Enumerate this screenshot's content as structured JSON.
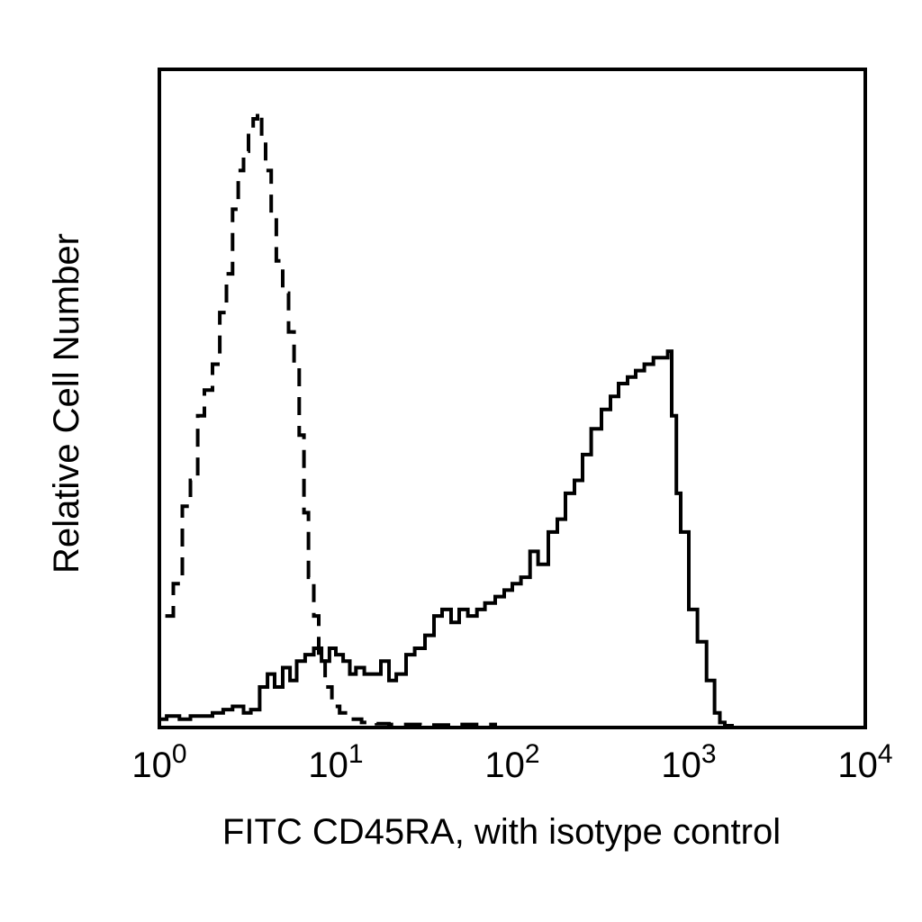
{
  "chart_data": {
    "type": "line",
    "title": "",
    "xlabel": "FITC CD45RA, with isotype control",
    "ylabel": "Relative Cell Number",
    "x_scale": "log10",
    "xlim": [
      1,
      10000
    ],
    "ylim": [
      0,
      100
    ],
    "grid": false,
    "legend": "none",
    "x_ticks": [
      {
        "value": 1,
        "base": "10",
        "exp": "0"
      },
      {
        "value": 10,
        "base": "10",
        "exp": "1"
      },
      {
        "value": 100,
        "base": "10",
        "exp": "2"
      },
      {
        "value": 1000,
        "base": "10",
        "exp": "3"
      },
      {
        "value": 10000,
        "base": "10",
        "exp": "4"
      }
    ],
    "series": [
      {
        "style": "dashed",
        "color": "#000000",
        "x": [
          1.08,
          1.2,
          1.35,
          1.5,
          1.65,
          1.8,
          2.0,
          2.2,
          2.4,
          2.6,
          2.8,
          3.0,
          3.2,
          3.4,
          3.6,
          3.8,
          4.0,
          4.3,
          4.6,
          5.0,
          5.4,
          5.8,
          6.2,
          6.6,
          7.0,
          7.5,
          8.0,
          8.7,
          9.5,
          10.5,
          12,
          14,
          17,
          20,
          30,
          50,
          80
        ],
        "y": [
          17,
          22,
          34,
          38,
          48,
          52,
          56,
          64,
          70,
          80,
          86,
          89,
          92,
          94,
          95,
          91,
          86,
          79,
          72,
          67,
          61,
          56,
          45,
          33,
          23,
          17,
          10,
          6,
          3,
          2,
          1,
          0.5,
          0.3,
          0.2,
          0.1,
          0.2,
          0
        ]
      },
      {
        "style": "solid",
        "color": "#000000",
        "x": [
          1.0,
          1.1,
          1.3,
          1.5,
          1.7,
          2.0,
          2.3,
          2.6,
          3.0,
          3.3,
          3.7,
          4.1,
          4.5,
          5.0,
          5.5,
          6.0,
          6.7,
          7.5,
          8.3,
          9.2,
          10,
          11,
          12,
          13,
          14.5,
          16,
          18,
          20,
          22,
          25,
          28,
          32,
          36,
          40,
          45,
          50,
          56,
          63,
          70,
          80,
          90,
          100,
          112,
          126,
          140,
          160,
          180,
          200,
          225,
          250,
          280,
          320,
          360,
          400,
          450,
          500,
          560,
          630,
          700,
          760,
          800,
          850,
          900,
          1000,
          1120,
          1260,
          1400,
          1500,
          1600,
          1700,
          1800
        ],
        "y": [
          1,
          1.5,
          1,
          1.5,
          1.5,
          2,
          2.5,
          3,
          2,
          2.5,
          6,
          8,
          6,
          9,
          7,
          10,
          11,
          12,
          10,
          12,
          11,
          10,
          8,
          9,
          8,
          8,
          10,
          7,
          8,
          11,
          12,
          14,
          17,
          18,
          16,
          18,
          17,
          18,
          19,
          20,
          21,
          22,
          23,
          27,
          25,
          30,
          32,
          36,
          38,
          42,
          46,
          49,
          51,
          53,
          54,
          55,
          56,
          57,
          57,
          58,
          48,
          36,
          30,
          18,
          13,
          7,
          2,
          0.5,
          0,
          0,
          0
        ]
      }
    ]
  }
}
